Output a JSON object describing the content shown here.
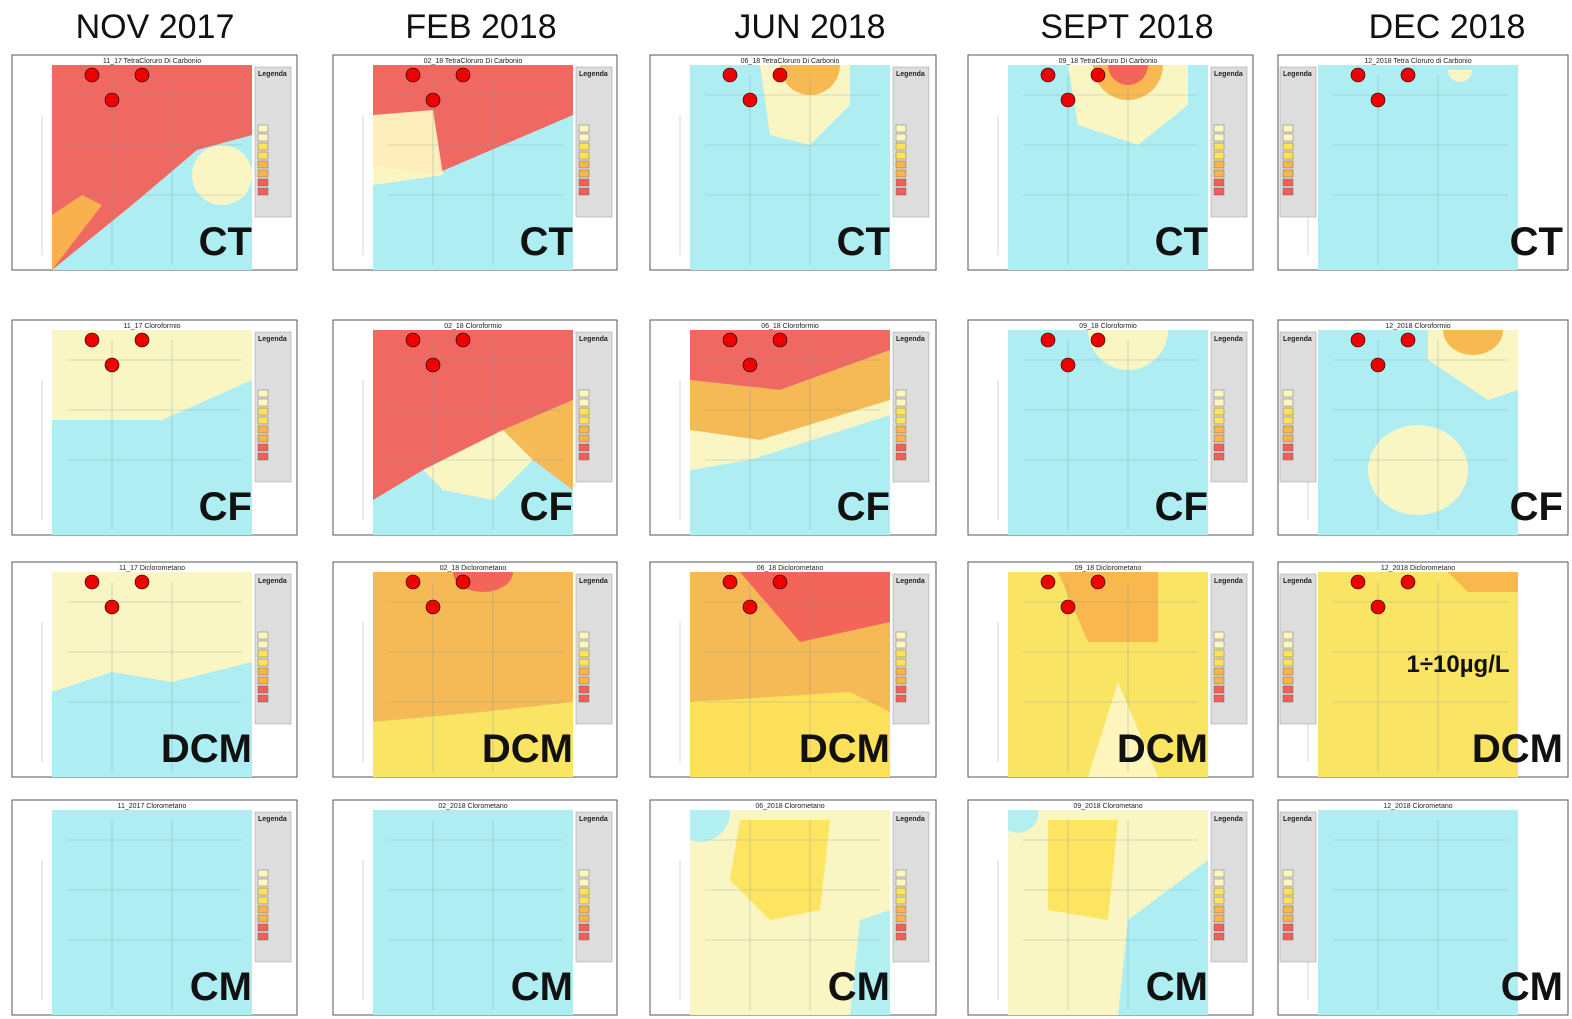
{
  "headers": [
    "NOV 2017",
    "FEB 2018",
    "JUN 2018",
    "SEPT 2018",
    "DEC 2018"
  ],
  "legend_title": "Legenda",
  "rows": [
    {
      "label": "CT",
      "panels": [
        {
          "title": "11_17 TetraCloruro Di Carbonio"
        },
        {
          "title": "02_18 TetraCloruro Di Carbonio"
        },
        {
          "title": "06_18 TetraCloruro Di Carbonio"
        },
        {
          "title": "09_18 TetraCloruro Di Carbonio"
        },
        {
          "title": "12_2018 Tetra Cloruro di Carbonio"
        }
      ]
    },
    {
      "label": "CF",
      "panels": [
        {
          "title": "11_17 Cloroformio"
        },
        {
          "title": "02_18 Cloroformio"
        },
        {
          "title": "06_18 Cloroformio"
        },
        {
          "title": "09_18 Cloroformio"
        },
        {
          "title": "12_2018 Cloroformio"
        }
      ]
    },
    {
      "label": "DCM",
      "panels": [
        {
          "title": "11_17 Diclorometano"
        },
        {
          "title": "02_18 Diclorometano"
        },
        {
          "title": "06_18 Diclorometano"
        },
        {
          "title": "09_18 Diclorometano"
        },
        {
          "title": "12_2018 Diclorometano",
          "annotation": "1÷10µg/L"
        }
      ]
    },
    {
      "label": "CM",
      "panels": [
        {
          "title": "11_2017 Clorometano"
        },
        {
          "title": "02_2018 Clorometano"
        },
        {
          "title": "06_2018 Clorometano"
        },
        {
          "title": "09_2018 Clorometano"
        },
        {
          "title": "12_2018 Clorometano"
        }
      ]
    }
  ]
}
